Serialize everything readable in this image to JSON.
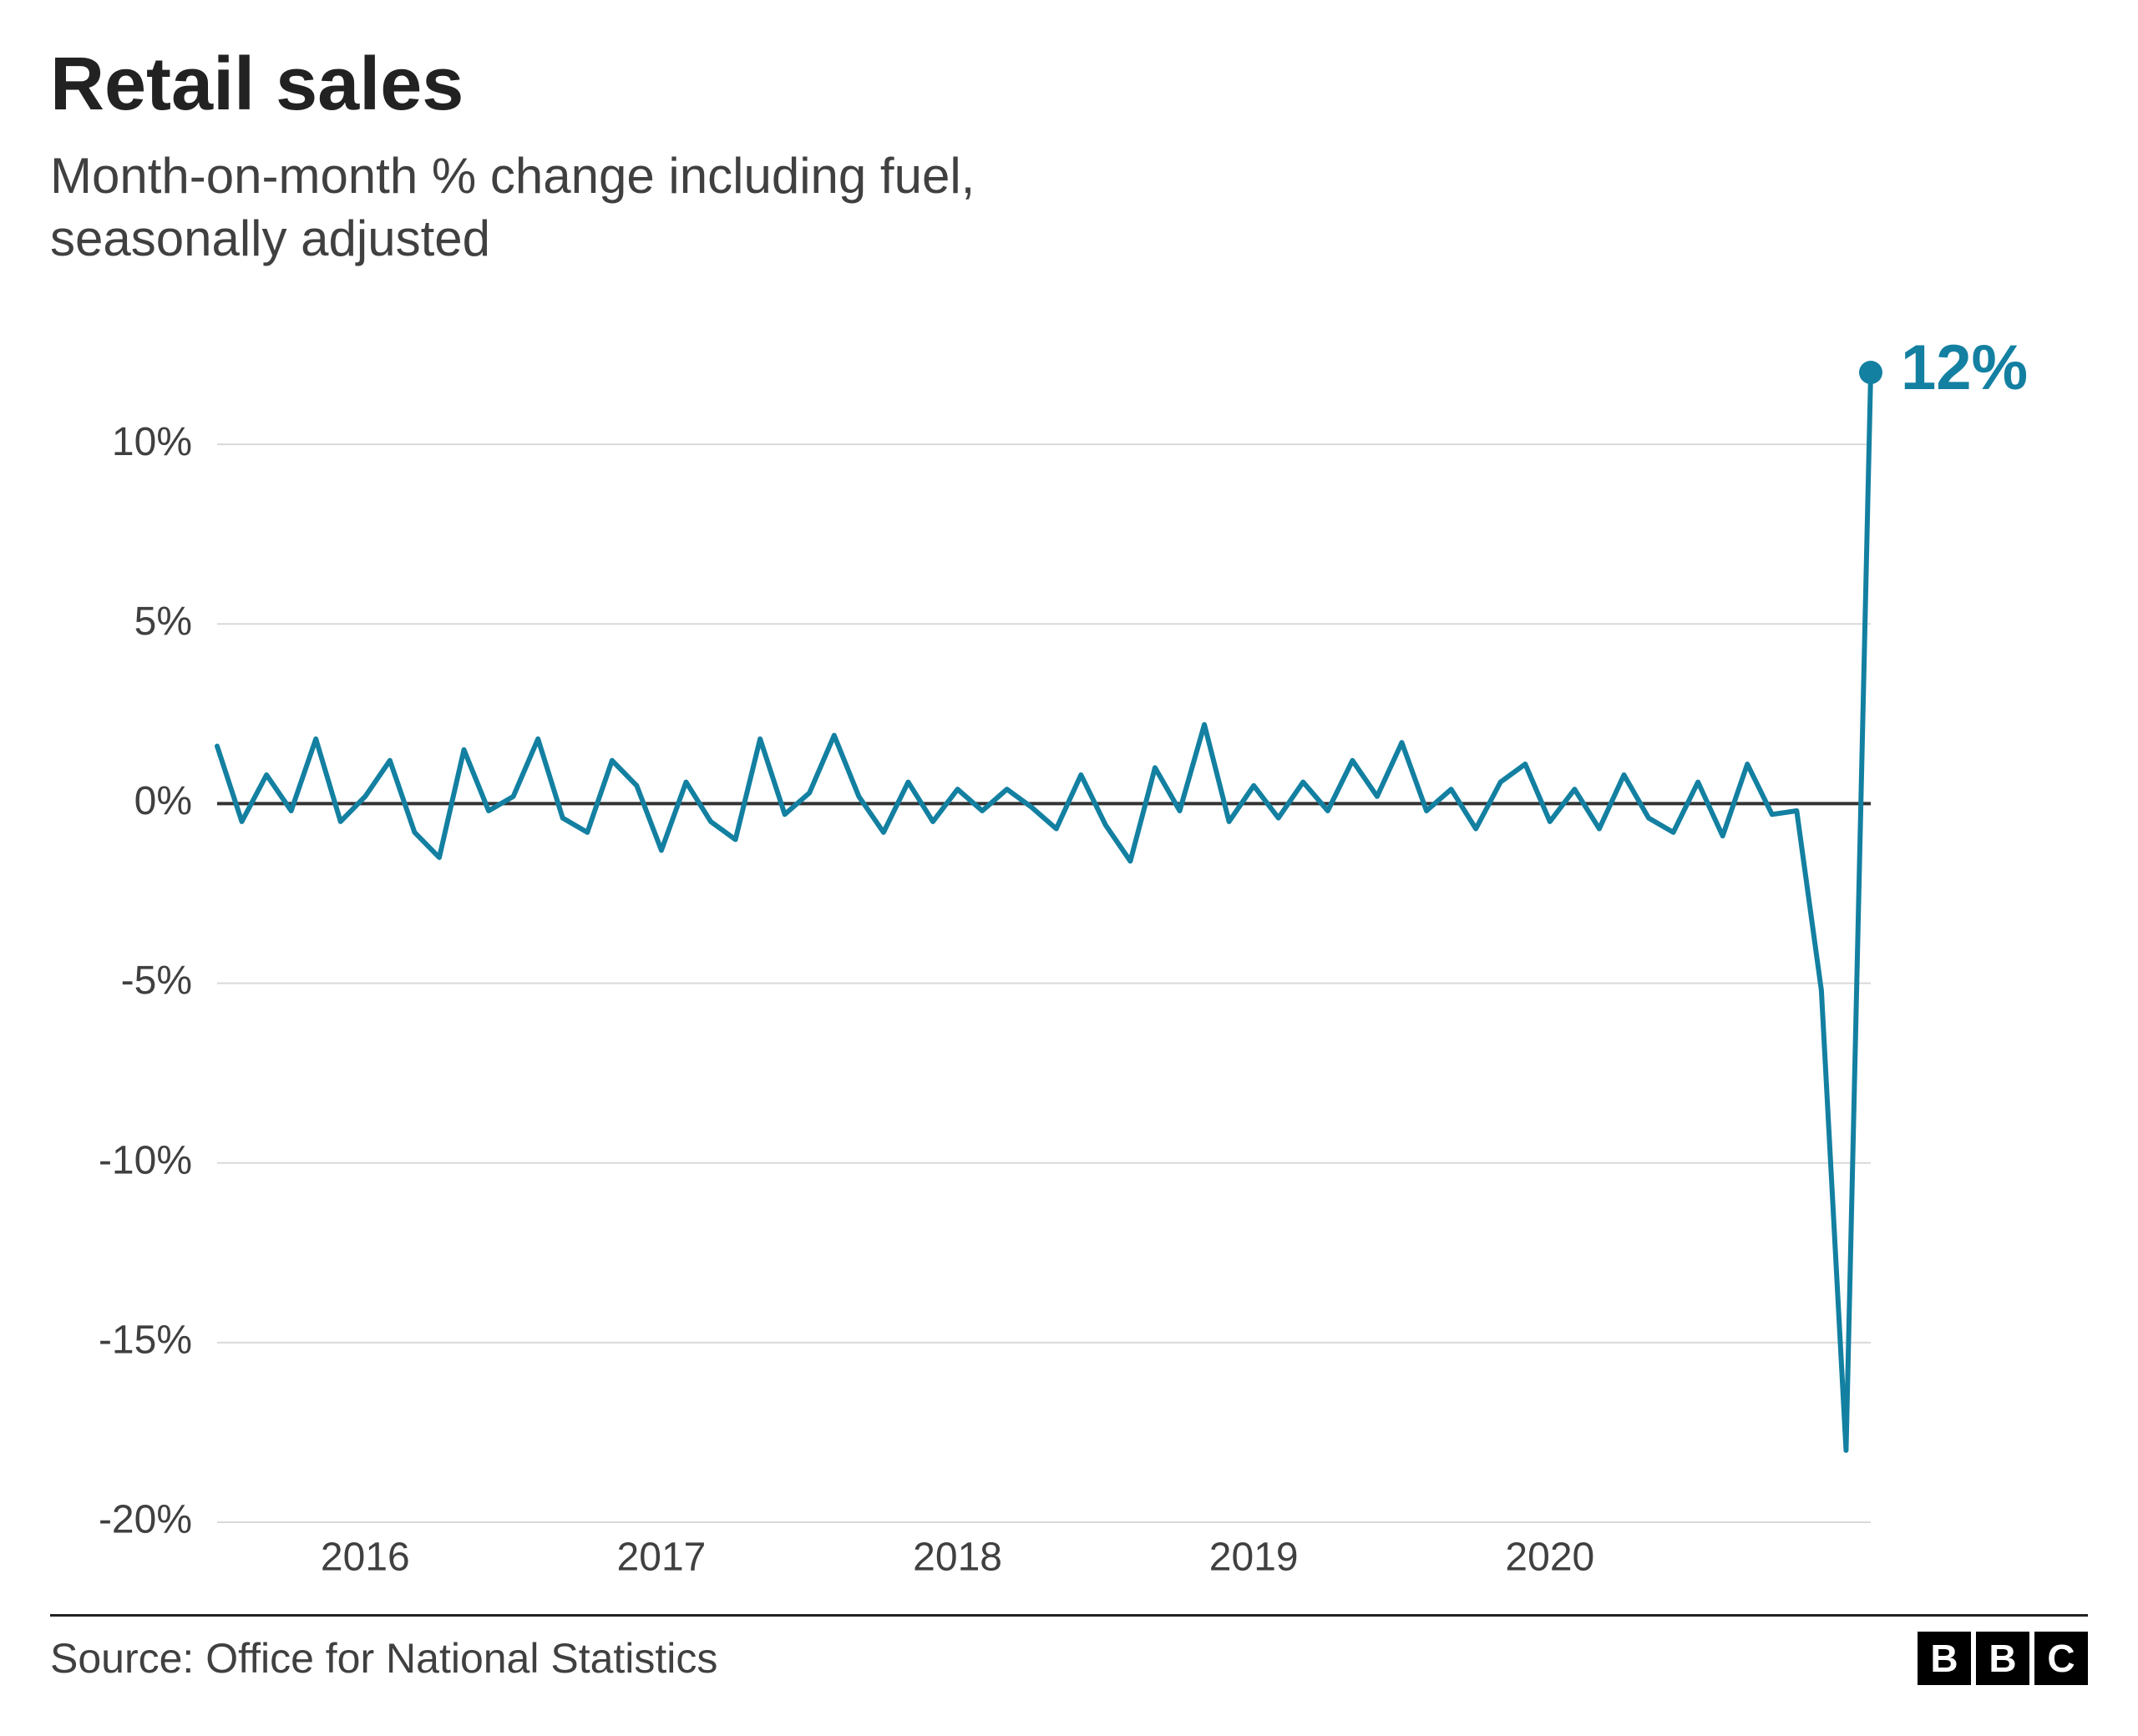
{
  "title": "Retail sales",
  "subtitle_line1": "Month-on-month % change including fuel,",
  "subtitle_line2": "seasonally adjusted",
  "source": "Source: Office for National Statistics",
  "logo_letters": [
    "B",
    "B",
    "C"
  ],
  "chart": {
    "type": "line",
    "background_color": "#ffffff",
    "grid_color": "#d9d9d9",
    "zero_line_color": "#333333",
    "line_color": "#1380a1",
    "line_width": 6,
    "callout_color": "#1380a1",
    "callout_value": "12%",
    "callout_marker_radius": 14,
    "title_fontsize": 90,
    "subtitle_fontsize": 60,
    "axis_label_fontsize": 48,
    "axis_label_color": "#404040",
    "y_ticks": [
      -20,
      -15,
      -10,
      -5,
      0,
      5,
      10
    ],
    "y_tick_labels": [
      "-20%",
      "-15%",
      "-10%",
      "-5%",
      "0%",
      "5%",
      "10%"
    ],
    "ylim": [
      -20,
      13
    ],
    "x_ticks": [
      6,
      18,
      30,
      42,
      54
    ],
    "x_tick_labels": [
      "2016",
      "2017",
      "2018",
      "2019",
      "2020"
    ],
    "values": [
      1.6,
      -0.5,
      0.8,
      -0.2,
      1.8,
      -0.5,
      0.2,
      1.2,
      -0.8,
      -1.5,
      1.5,
      -0.2,
      0.2,
      1.8,
      -0.4,
      -0.8,
      1.2,
      0.5,
      -1.3,
      0.6,
      -0.5,
      -1.0,
      1.8,
      -0.3,
      0.3,
      1.9,
      0.2,
      -0.8,
      0.6,
      -0.5,
      0.4,
      -0.2,
      0.4,
      -0.1,
      -0.7,
      0.8,
      -0.6,
      -1.6,
      1.0,
      -0.2,
      2.2,
      -0.5,
      0.5,
      -0.4,
      0.6,
      -0.2,
      1.2,
      0.2,
      1.7,
      -0.2,
      0.4,
      -0.7,
      0.6,
      1.1,
      -0.5,
      0.4,
      -0.7,
      0.8,
      -0.4,
      -0.8,
      0.6,
      -0.9,
      1.1,
      -0.3,
      -0.2,
      -5.2,
      -18.0,
      12.0
    ]
  }
}
